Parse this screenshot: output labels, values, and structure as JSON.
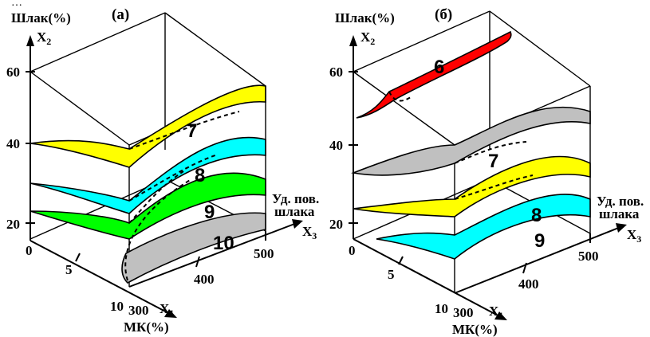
{
  "caption_fragment": "…",
  "panels": [
    {
      "label": "(а)",
      "y_axis": {
        "name": "Шлак(%)",
        "var": "X",
        "sub": "2",
        "ticks": [
          "60",
          "40",
          "20"
        ]
      },
      "x1_axis": {
        "name": "МК(%)",
        "var": "X",
        "sub": "1",
        "ticks": [
          "0",
          "5",
          "10"
        ]
      },
      "x3_axis": {
        "name_line1": "Уд. пов.",
        "name_line2": "шлака",
        "var": "X",
        "sub": "3",
        "ticks": [
          "300",
          "400",
          "500"
        ]
      },
      "levels": [
        "7",
        "8",
        "9",
        "10"
      ],
      "surface_colors": {
        "yellow": "#ffff00",
        "cyan": "#00ffff",
        "green": "#00ff00",
        "gray": "#c0c0c0"
      }
    },
    {
      "label": "(б)",
      "y_axis": {
        "name": "Шлак(%)",
        "var": "X",
        "sub": "2",
        "ticks": [
          "60",
          "40",
          "20"
        ]
      },
      "x1_axis": {
        "name": "МК(%)",
        "var": "X",
        "sub": "1",
        "ticks": [
          "0",
          "5",
          "10"
        ]
      },
      "x3_axis": {
        "name_line1": "Уд. пов.",
        "name_line2": "шлака",
        "var": "X",
        "sub": "3",
        "ticks": [
          "300",
          "400",
          "500"
        ]
      },
      "levels": [
        "6",
        "7",
        "8",
        "9"
      ],
      "surface_colors": {
        "red": "#ff0000",
        "gray": "#c0c0c0",
        "yellow": "#ffff00",
        "cyan": "#00ffff"
      }
    }
  ]
}
